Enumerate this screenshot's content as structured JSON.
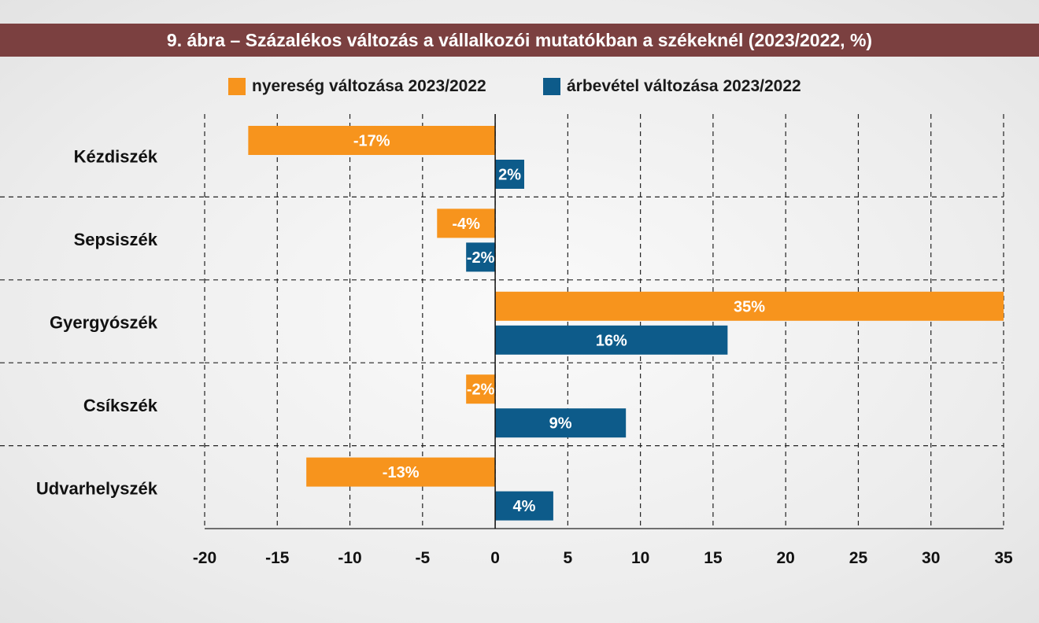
{
  "title": "9. ábra – Százalékos változás a vállalkozói mutatókban a székeknél (2023/2022, %)",
  "colors": {
    "title_bg": "#7b4040",
    "profit": "#f7941d",
    "revenue": "#0d5b8a"
  },
  "chart_data": {
    "type": "bar",
    "orientation": "horizontal",
    "title": "9. ábra – Százalékos változás a vállalkozói mutatókban a székeknél (2023/2022, %)",
    "categories": [
      "Kézdiszék",
      "Sepsiszék",
      "Gyergyószék",
      "Csíkszék",
      "Udvarhelyszék"
    ],
    "series": [
      {
        "name": "nyereség változása 2023/2022",
        "color": "#f7941d",
        "values": [
          -17,
          -4,
          35,
          -2,
          -13
        ],
        "labels": [
          "-17%",
          "-4%",
          "35%",
          "-2%",
          "-13%"
        ]
      },
      {
        "name": "árbevétel változása 2023/2022",
        "color": "#0d5b8a",
        "values": [
          2,
          -2,
          16,
          9,
          4
        ],
        "labels": [
          "2%",
          "-2%",
          "16%",
          "9%",
          "4%"
        ]
      }
    ],
    "xlim": [
      -20,
      35
    ],
    "xticks": [
      -20,
      -15,
      -10,
      -5,
      0,
      5,
      10,
      15,
      20,
      25,
      30,
      35
    ],
    "xlabel": "",
    "ylabel": "",
    "grid": true,
    "legend": "top"
  }
}
